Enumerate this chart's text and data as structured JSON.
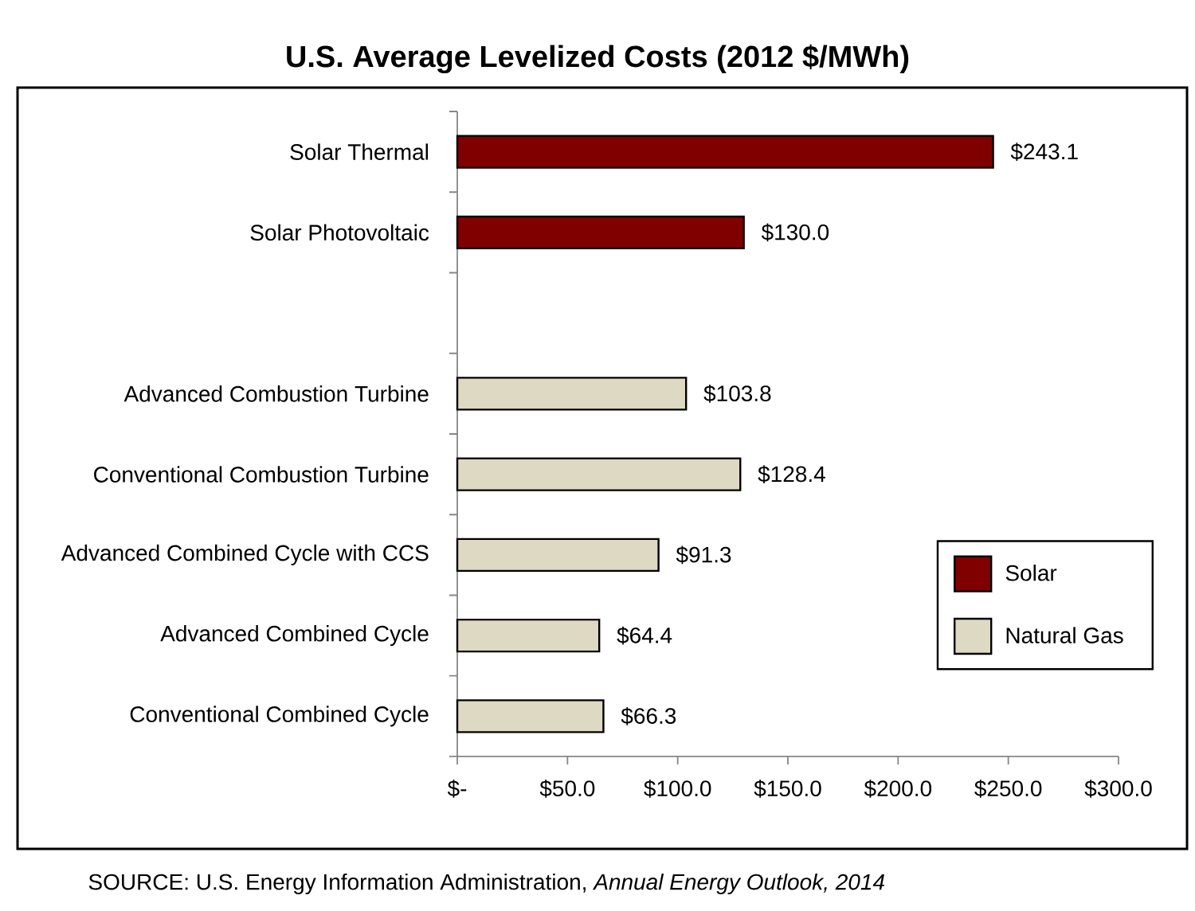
{
  "chart_data": {
    "type": "bar",
    "orientation": "horizontal",
    "stacked": true,
    "title": "U.S. Average Levelized Costs (2012 $/MWh)",
    "categories": [
      "Solar Thermal",
      "Solar Photovoltaic",
      null,
      "Advanced Combustion Turbine",
      "Conventional Combustion Turbine",
      "Advanced Combined Cycle with CCS",
      "Advanced Combined Cycle",
      "Conventional Combined Cycle"
    ],
    "series": [
      {
        "name": "Solar",
        "color": "#800000",
        "values": [
          243.1,
          130.0,
          null,
          null,
          null,
          null,
          null,
          null
        ],
        "value_labels": [
          "$243.1",
          "$130.0",
          null,
          null,
          null,
          null,
          null,
          null
        ]
      },
      {
        "name": "Natural Gas",
        "color": "#ddd9c3",
        "values": [
          null,
          null,
          null,
          103.8,
          128.4,
          91.3,
          64.4,
          66.3
        ],
        "value_labels": [
          null,
          null,
          null,
          "$103.8",
          "$128.4",
          "$91.3",
          "$64.4",
          "$66.3"
        ]
      }
    ],
    "xlim": [
      0,
      300
    ],
    "xticks": [
      {
        "value": 0,
        "label": "$-"
      },
      {
        "value": 50,
        "label": "$50.0"
      },
      {
        "value": 100,
        "label": "$100.0"
      },
      {
        "value": 150,
        "label": "$150.0"
      },
      {
        "value": 200,
        "label": "$200.0"
      },
      {
        "value": 250,
        "label": "$250.0"
      },
      {
        "value": 300,
        "label": "$300.0"
      }
    ],
    "legend": "bottom right",
    "annotations": [
      "SOURCE: U.S. Energy Information Administration, *Annual Energy Outlook, 2014*"
    ]
  }
}
